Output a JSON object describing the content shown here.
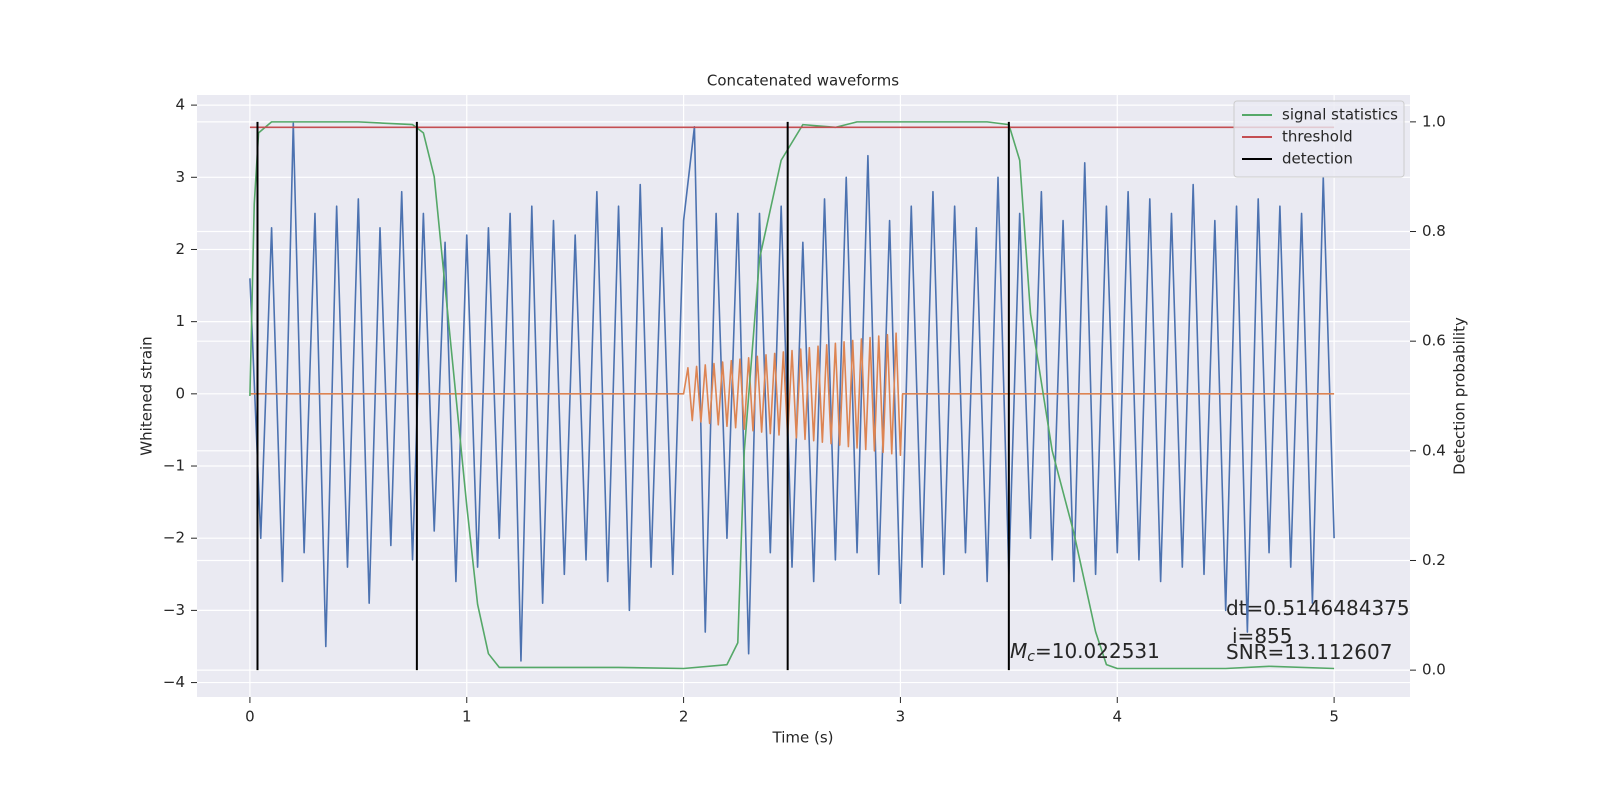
{
  "chart_data": {
    "type": "line",
    "title": "Concatenated waveforms",
    "x_label": "Time (s)",
    "y_label": "Whitened strain",
    "y2_label": "Detection probability",
    "xlim": [
      -0.244,
      5.35
    ],
    "xticks": [
      0,
      1,
      2,
      3,
      4,
      5
    ],
    "ylim": [
      -4.2,
      4.14
    ],
    "yticks": [
      {
        "value": -4,
        "label": "−4"
      },
      {
        "value": -3,
        "label": "−3"
      },
      {
        "value": -2,
        "label": "−2"
      },
      {
        "value": -1,
        "label": "−1"
      },
      0,
      1,
      2,
      3,
      4
    ],
    "y2lim": [
      -0.049,
      1.049
    ],
    "y2ticks": [
      {
        "value": 0,
        "label": "0.0"
      },
      {
        "value": 0.2,
        "label": "0.2"
      },
      {
        "value": 0.4,
        "label": "0.4"
      },
      {
        "value": 0.6,
        "label": "0.6"
      },
      {
        "value": 0.8,
        "label": "0.8"
      },
      {
        "value": 1.0,
        "label": "1.0"
      }
    ],
    "grid": true,
    "legend": "upper right",
    "series": [
      {
        "color": "#4c72b0",
        "x": [
          0,
          0.05,
          0.1,
          0.15,
          0.2,
          0.25,
          0.3,
          0.35,
          0.4,
          0.45,
          0.5,
          0.55,
          0.6,
          0.65,
          0.7,
          0.75,
          0.8,
          0.85,
          0.9,
          0.95,
          1,
          1.05,
          1.1,
          1.15,
          1.2,
          1.25,
          1.3,
          1.35,
          1.4,
          1.45,
          1.5,
          1.55,
          1.6,
          1.65,
          1.7,
          1.75,
          1.8,
          1.85,
          1.9,
          1.95,
          2,
          2.05,
          2.1,
          2.15,
          2.2,
          2.25,
          2.3,
          2.35,
          2.4,
          2.45,
          2.5,
          2.55,
          2.6,
          2.65,
          2.7,
          2.75,
          2.8,
          2.85,
          2.9,
          2.95,
          3,
          3.05,
          3.1,
          3.15,
          3.2,
          3.25,
          3.3,
          3.35,
          3.4,
          3.45,
          3.5,
          3.55,
          3.6,
          3.65,
          3.7,
          3.75,
          3.8,
          3.85,
          3.9,
          3.95,
          4,
          4.05,
          4.1,
          4.15,
          4.2,
          4.25,
          4.3,
          4.35,
          4.4,
          4.45,
          4.5,
          4.55,
          4.6,
          4.65,
          4.7,
          4.75,
          4.8,
          4.85,
          4.9,
          4.95,
          5
        ],
        "values": [
          1.6,
          -2.0,
          2.3,
          -2.6,
          3.75,
          -2.2,
          2.5,
          -3.5,
          2.6,
          -2.4,
          2.7,
          -2.9,
          2.3,
          -2.1,
          2.8,
          -2.3,
          2.5,
          -1.9,
          2.1,
          -2.6,
          2.2,
          -2.4,
          2.3,
          -2.0,
          2.5,
          -3.7,
          2.6,
          -2.9,
          2.4,
          -2.5,
          2.2,
          -2.3,
          2.8,
          -2.6,
          2.6,
          -3.0,
          2.9,
          -2.4,
          2.3,
          -2.5,
          2.4,
          3.7,
          -3.3,
          2.5,
          -2.0,
          2.5,
          -3.6,
          2.5,
          -2.2,
          2.6,
          -2.4,
          2.1,
          -2.6,
          2.7,
          -2.3,
          3.0,
          -2.2,
          3.3,
          -2.5,
          2.4,
          -2.9,
          2.6,
          -2.4,
          2.8,
          -2.5,
          2.6,
          -2.2,
          2.3,
          -2.6,
          3.0,
          -2.5,
          2.5,
          -2.0,
          2.8,
          -2.3,
          2.4,
          -2.6,
          3.2,
          -2.5,
          2.6,
          -2.2,
          2.8,
          -2.3,
          2.7,
          -2.6,
          2.5,
          -2.4,
          2.9,
          -2.5,
          2.4,
          -3.0,
          2.6,
          -3.3,
          2.7,
          -2.2,
          2.6,
          -2.4,
          2.5,
          -2.9,
          3.0,
          -2.0
        ]
      },
      {
        "color": "#dd8452",
        "x": [
          0,
          2.0,
          2.02,
          2.04,
          2.06,
          2.08,
          2.1,
          2.12,
          2.14,
          2.16,
          2.18,
          2.2,
          2.22,
          2.24,
          2.26,
          2.28,
          2.3,
          2.32,
          2.34,
          2.36,
          2.38,
          2.4,
          2.42,
          2.44,
          2.46,
          2.48,
          2.5,
          2.52,
          2.54,
          2.56,
          2.58,
          2.6,
          2.62,
          2.64,
          2.66,
          2.68,
          2.7,
          2.72,
          2.74,
          2.76,
          2.78,
          2.8,
          2.82,
          2.84,
          2.86,
          2.88,
          2.9,
          2.92,
          2.94,
          2.96,
          2.98,
          3.0,
          3.01,
          5
        ],
        "values": [
          0,
          0,
          0.36,
          -0.37,
          0.38,
          -0.39,
          0.4,
          -0.41,
          0.42,
          -0.43,
          0.44,
          -0.45,
          0.46,
          -0.47,
          0.48,
          -0.49,
          0.5,
          -0.51,
          0.52,
          -0.53,
          0.54,
          -0.55,
          0.56,
          -0.57,
          0.58,
          -0.59,
          0.6,
          -0.61,
          0.62,
          -0.63,
          0.64,
          -0.65,
          0.66,
          -0.67,
          0.68,
          -0.69,
          0.7,
          -0.71,
          0.72,
          -0.73,
          0.74,
          -0.75,
          0.76,
          -0.77,
          0.78,
          -0.79,
          0.8,
          -0.81,
          0.82,
          -0.83,
          0.84,
          -0.85,
          0,
          0
        ]
      },
      {
        "name": "signal statistics",
        "color": "#55a868",
        "axis": "y2",
        "x": [
          0,
          0.02,
          0.04,
          0.1,
          0.5,
          0.75,
          0.8,
          0.85,
          0.9,
          0.95,
          1.0,
          1.05,
          1.1,
          1.15,
          1.3,
          1.7,
          2.0,
          2.2,
          2.25,
          2.28,
          2.35,
          2.45,
          2.55,
          2.7,
          2.8,
          3.4,
          3.5,
          3.55,
          3.6,
          3.7,
          3.8,
          3.9,
          3.95,
          4.0,
          4.5,
          4.7,
          5.0
        ],
        "values": [
          0.5,
          0.85,
          0.98,
          1.0,
          1.0,
          0.995,
          0.98,
          0.9,
          0.7,
          0.5,
          0.3,
          0.12,
          0.03,
          0.005,
          0.005,
          0.005,
          0.003,
          0.01,
          0.05,
          0.4,
          0.75,
          0.93,
          0.995,
          0.99,
          1.0,
          1.0,
          0.995,
          0.93,
          0.65,
          0.4,
          0.25,
          0.07,
          0.01,
          0.003,
          0.003,
          0.007,
          0.003
        ]
      },
      {
        "name": "threshold",
        "color": "#c44e52",
        "axis": "y2",
        "x": [
          0,
          5
        ],
        "values": [
          0.99,
          0.99
        ]
      }
    ],
    "detection": {
      "name": "detection",
      "color": "#000000",
      "x": [
        0.035,
        0.77,
        2.48,
        3.5
      ],
      "span": [
        0,
        1.0
      ]
    },
    "annotations": [
      {
        "text": "dt=0.5146484375"
      },
      {
        "text": "i=855"
      },
      {
        "text": "SNR=13.112607"
      },
      {
        "symbol": "M",
        "subscript": "c",
        "text": "=10.022531"
      }
    ]
  }
}
